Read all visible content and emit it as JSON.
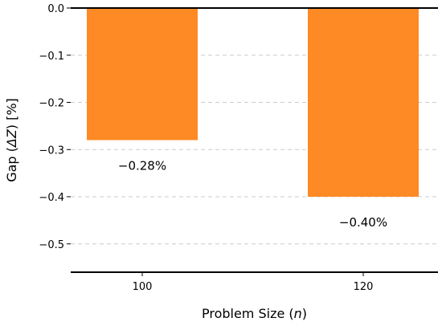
{
  "chart_data": {
    "type": "bar",
    "categories": [
      "100",
      "120"
    ],
    "values": [
      -0.28,
      -0.4
    ],
    "data_labels": [
      "−0.28%",
      "−0.40%"
    ],
    "bar_color": "#fd8a24",
    "ylim": [
      -0.56,
      0.0
    ],
    "yticks": [
      0.0,
      -0.1,
      -0.2,
      -0.3,
      -0.4,
      -0.5
    ],
    "ytick_labels": [
      "0.0",
      "−0.1",
      "−0.2",
      "−0.3",
      "−0.4",
      "−0.5"
    ],
    "xlabel_parts": [
      "Problem Size (",
      "n",
      ")"
    ],
    "ylabel_parts": [
      "Gap (",
      "ΔZ",
      ") [%]"
    ],
    "grid": "y-dashed",
    "title": ""
  }
}
